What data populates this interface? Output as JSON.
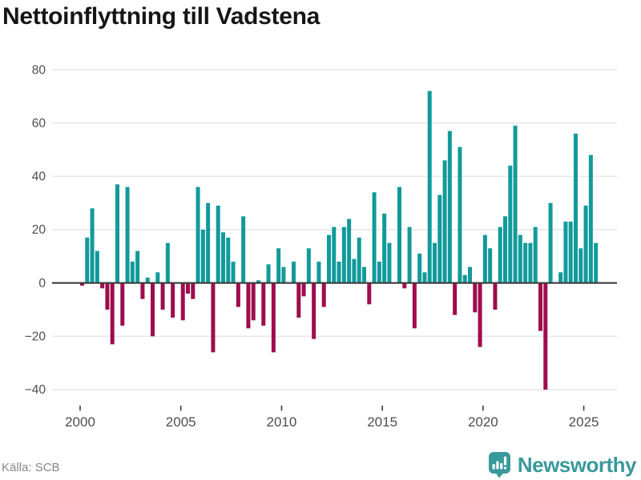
{
  "title": "Nettoinflyttning till Vadstena",
  "source_label": "Källa: SCB",
  "brand": {
    "name": "Newsworthy",
    "color": "#3a999b"
  },
  "colors": {
    "positive_bar": "#129a9b",
    "negative_bar": "#9f0c4d",
    "gridline": "#e8e8e8",
    "zero_line": "#3d3d3d",
    "axis_text": "#4d4d4d",
    "title_text": "#161616",
    "source_text": "#878787"
  },
  "chart_data": {
    "type": "bar",
    "title": "Nettoinflyttning till Vadstena",
    "frequency": "quarterly",
    "grid": "horizontal",
    "legend": "none",
    "x_axis_ticks": [
      2000,
      2005,
      2010,
      2015,
      2020,
      2025
    ],
    "y_axis_ticks": [
      80,
      60,
      40,
      20,
      0,
      -20,
      -40
    ],
    "ylim": [
      -45,
      88
    ],
    "series": [
      {
        "year": 2000,
        "values": [
          -1,
          17,
          28,
          12
        ]
      },
      {
        "year": 2001,
        "values": [
          -2,
          -10,
          -23,
          37
        ]
      },
      {
        "year": 2002,
        "values": [
          -16,
          36,
          8,
          12
        ]
      },
      {
        "year": 2003,
        "values": [
          -6,
          2,
          -20,
          4
        ]
      },
      {
        "year": 2004,
        "values": [
          -10,
          15,
          -13,
          0
        ]
      },
      {
        "year": 2005,
        "values": [
          -14,
          -4,
          -6,
          36
        ]
      },
      {
        "year": 2006,
        "values": [
          20,
          30,
          -26,
          29
        ]
      },
      {
        "year": 2007,
        "values": [
          19,
          17,
          8,
          -9
        ]
      },
      {
        "year": 2008,
        "values": [
          25,
          -17,
          -14,
          1
        ]
      },
      {
        "year": 2009,
        "values": [
          -16,
          7,
          -26,
          13
        ]
      },
      {
        "year": 2010,
        "values": [
          6,
          0,
          8,
          -13
        ]
      },
      {
        "year": 2011,
        "values": [
          -5,
          13,
          -21,
          8
        ]
      },
      {
        "year": 2012,
        "values": [
          -9,
          18,
          21,
          8
        ]
      },
      {
        "year": 2013,
        "values": [
          21,
          24,
          9,
          17
        ]
      },
      {
        "year": 2014,
        "values": [
          6,
          -8,
          34,
          8
        ]
      },
      {
        "year": 2015,
        "values": [
          26,
          15,
          0,
          36
        ]
      },
      {
        "year": 2016,
        "values": [
          -2,
          21,
          -17,
          11
        ]
      },
      {
        "year": 2017,
        "values": [
          4,
          72,
          15,
          33
        ]
      },
      {
        "year": 2018,
        "values": [
          46,
          57,
          -12,
          51
        ]
      },
      {
        "year": 2019,
        "values": [
          3,
          6,
          -11,
          -24
        ]
      },
      {
        "year": 2020,
        "values": [
          18,
          13,
          -10,
          21
        ]
      },
      {
        "year": 2021,
        "values": [
          25,
          44,
          59,
          18
        ]
      },
      {
        "year": 2022,
        "values": [
          15,
          15,
          21,
          -18
        ]
      },
      {
        "year": 2023,
        "values": [
          -40,
          30,
          0,
          4
        ]
      },
      {
        "year": 2024,
        "values": [
          23,
          23,
          56,
          13
        ]
      },
      {
        "year": 2025,
        "values": [
          29,
          48,
          15
        ]
      }
    ]
  }
}
